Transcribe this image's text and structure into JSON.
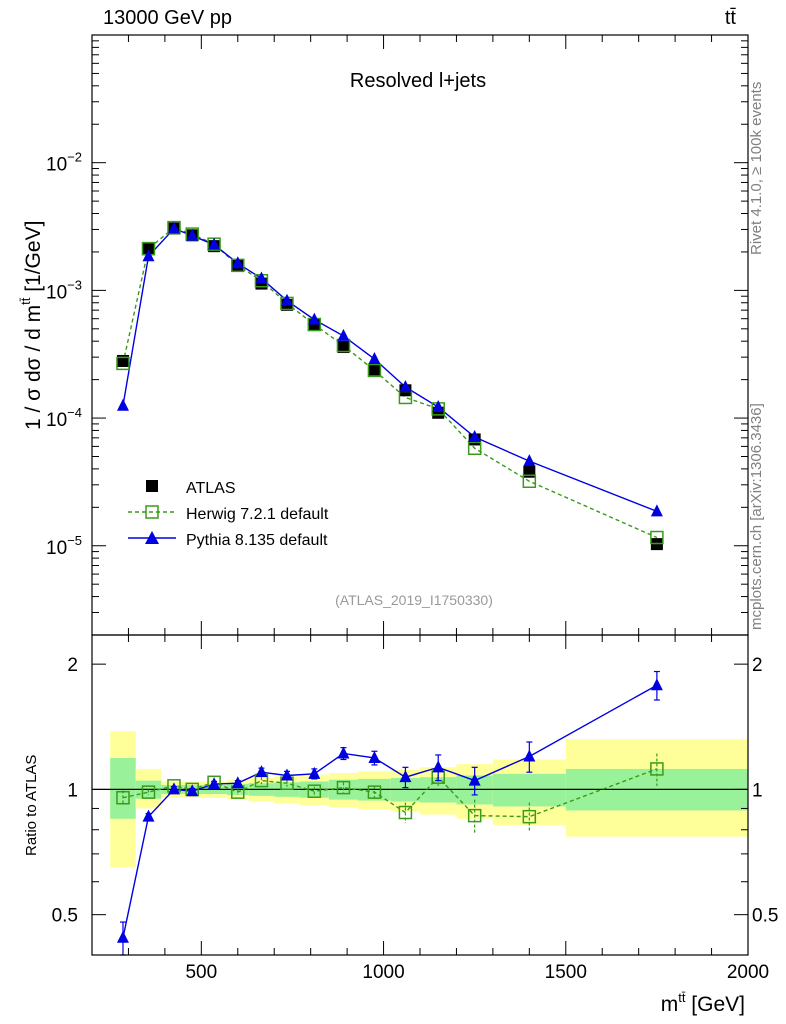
{
  "header": {
    "energy_label": "13000 GeV pp",
    "process_label": "tt̄"
  },
  "side_labels": {
    "rivet": "Rivet 4.1.0, ≥ 100k events",
    "mcplots": "mcplots.cern.ch [arXiv:1306.3436]"
  },
  "analysis_id": "(ATLAS_2019_I1750330)",
  "colors": {
    "atlas": "#000000",
    "herwig": "#3a9a1a",
    "pythia": "#0000e0",
    "band_inner": "#99f299",
    "band_outer": "#ffff99"
  },
  "legend": {
    "atlas": "ATLAS",
    "herwig": "Herwig 7.2.1 default",
    "pythia": "Pythia 8.135 default"
  },
  "chart_data": [
    {
      "type": "line",
      "title": "Resolved l+jets",
      "ylabel": "1 / σ dσ / d m",
      "ylabel_sup": "tt̄",
      "ylabel_unit": " [1/GeV]",
      "yscale": "log",
      "ylim": [
        2e-06,
        0.1
      ],
      "xlim": [
        200,
        2000
      ],
      "yticks": [
        {
          "value": 1e-05,
          "base": "10",
          "exp": "−5"
        },
        {
          "value": 0.0001,
          "base": "10",
          "exp": "−4"
        },
        {
          "value": 0.001,
          "base": "10",
          "exp": "−3"
        },
        {
          "value": 0.01,
          "base": "10",
          "exp": "−2"
        }
      ],
      "x": [
        285,
        355,
        425,
        475,
        535,
        600,
        665,
        735,
        810,
        890,
        975,
        1060,
        1150,
        1250,
        1400,
        1750
      ],
      "series": [
        {
          "name": "ATLAS",
          "values": [
            0.00028,
            0.00215,
            0.00305,
            0.0027,
            0.00222,
            0.00158,
            0.00113,
            0.00077,
            0.00054,
            0.00036,
            0.00024,
            0.000165,
            0.00011,
            6.8e-05,
            3.8e-05,
            1.03e-05
          ]
        },
        {
          "name": "Herwig 7.2.1 default",
          "values": [
            0.000268,
            0.00212,
            0.0031,
            0.00276,
            0.0023,
            0.00157,
            0.00119,
            0.00079,
            0.00054,
            0.00037,
            0.000236,
            0.000145,
            0.000118,
            5.8e-05,
            3.2e-05,
            1.16e-05
          ]
        },
        {
          "name": "Pythia 8.135 default",
          "values": [
            0.000125,
            0.00185,
            0.00305,
            0.00268,
            0.00228,
            0.00163,
            0.00124,
            0.00083,
            0.00059,
            0.00044,
            0.00029,
            0.000175,
            0.000122,
            7.1e-05,
            4.6e-05,
            1.86e-05
          ]
        }
      ]
    },
    {
      "type": "line",
      "ylabel": "Ratio to ATLAS",
      "xlabel": "m",
      "xlabel_sup": "tt̄",
      "xlabel_unit": " [GeV]",
      "yscale": "log",
      "ylim": [
        0.4,
        2.35
      ],
      "xlim": [
        200,
        2000
      ],
      "yticks": [
        0.5,
        1,
        2
      ],
      "ytick_labels": [
        "0.5",
        "1",
        "2"
      ],
      "xticks": [
        500,
        1000,
        1500,
        2000
      ],
      "xtick_labels": [
        "500",
        "1000",
        "1500",
        "2000"
      ],
      "x": [
        285,
        355,
        425,
        475,
        535,
        600,
        665,
        735,
        810,
        890,
        975,
        1060,
        1150,
        1250,
        1400,
        1750
      ],
      "bin_edges": [
        250,
        320,
        390,
        450,
        500,
        570,
        630,
        700,
        770,
        850,
        930,
        1020,
        1100,
        1200,
        1300,
        1500,
        2000
      ],
      "band_inner": [
        [
          0.85,
          1.19
        ],
        [
          0.95,
          1.05
        ],
        [
          0.975,
          1.025
        ],
        [
          0.975,
          1.025
        ],
        [
          0.975,
          1.025
        ],
        [
          0.97,
          1.03
        ],
        [
          0.965,
          1.035
        ],
        [
          0.96,
          1.04
        ],
        [
          0.955,
          1.045
        ],
        [
          0.945,
          1.055
        ],
        [
          0.94,
          1.06
        ],
        [
          0.935,
          1.065
        ],
        [
          0.93,
          1.07
        ],
        [
          0.92,
          1.08
        ],
        [
          0.91,
          1.09
        ],
        [
          0.89,
          1.12
        ]
      ],
      "band_outer": [
        [
          0.65,
          1.38
        ],
        [
          0.9,
          1.12
        ],
        [
          0.955,
          1.045
        ],
        [
          0.955,
          1.045
        ],
        [
          0.955,
          1.045
        ],
        [
          0.945,
          1.055
        ],
        [
          0.935,
          1.065
        ],
        [
          0.925,
          1.075
        ],
        [
          0.915,
          1.085
        ],
        [
          0.905,
          1.095
        ],
        [
          0.895,
          1.105
        ],
        [
          0.885,
          1.115
        ],
        [
          0.87,
          1.13
        ],
        [
          0.85,
          1.15
        ],
        [
          0.82,
          1.18
        ],
        [
          0.77,
          1.32
        ]
      ],
      "series": [
        {
          "name": "Herwig 7.2.1 default",
          "values": [
            0.955,
            0.985,
            1.02,
            1.0,
            1.04,
            0.985,
            1.05,
            1.035,
            0.99,
            1.01,
            0.985,
            0.88,
            1.07,
            0.865,
            0.86,
            1.12
          ],
          "errors": [
            0.04,
            0.015,
            0.015,
            0.015,
            0.015,
            0.015,
            0.02,
            0.02,
            0.025,
            0.03,
            0.035,
            0.05,
            0.05,
            0.08,
            0.07,
            0.1
          ]
        },
        {
          "name": "Pythia 8.135 default",
          "values": [
            0.44,
            0.86,
            1.0,
            0.99,
            1.03,
            1.035,
            1.1,
            1.08,
            1.09,
            1.22,
            1.19,
            1.07,
            1.13,
            1.05,
            1.2,
            1.78
          ],
          "errors": [
            0.04,
            0.015,
            0.015,
            0.015,
            0.015,
            0.015,
            0.025,
            0.025,
            0.03,
            0.04,
            0.045,
            0.06,
            0.08,
            0.08,
            0.1,
            0.14
          ]
        }
      ]
    }
  ]
}
